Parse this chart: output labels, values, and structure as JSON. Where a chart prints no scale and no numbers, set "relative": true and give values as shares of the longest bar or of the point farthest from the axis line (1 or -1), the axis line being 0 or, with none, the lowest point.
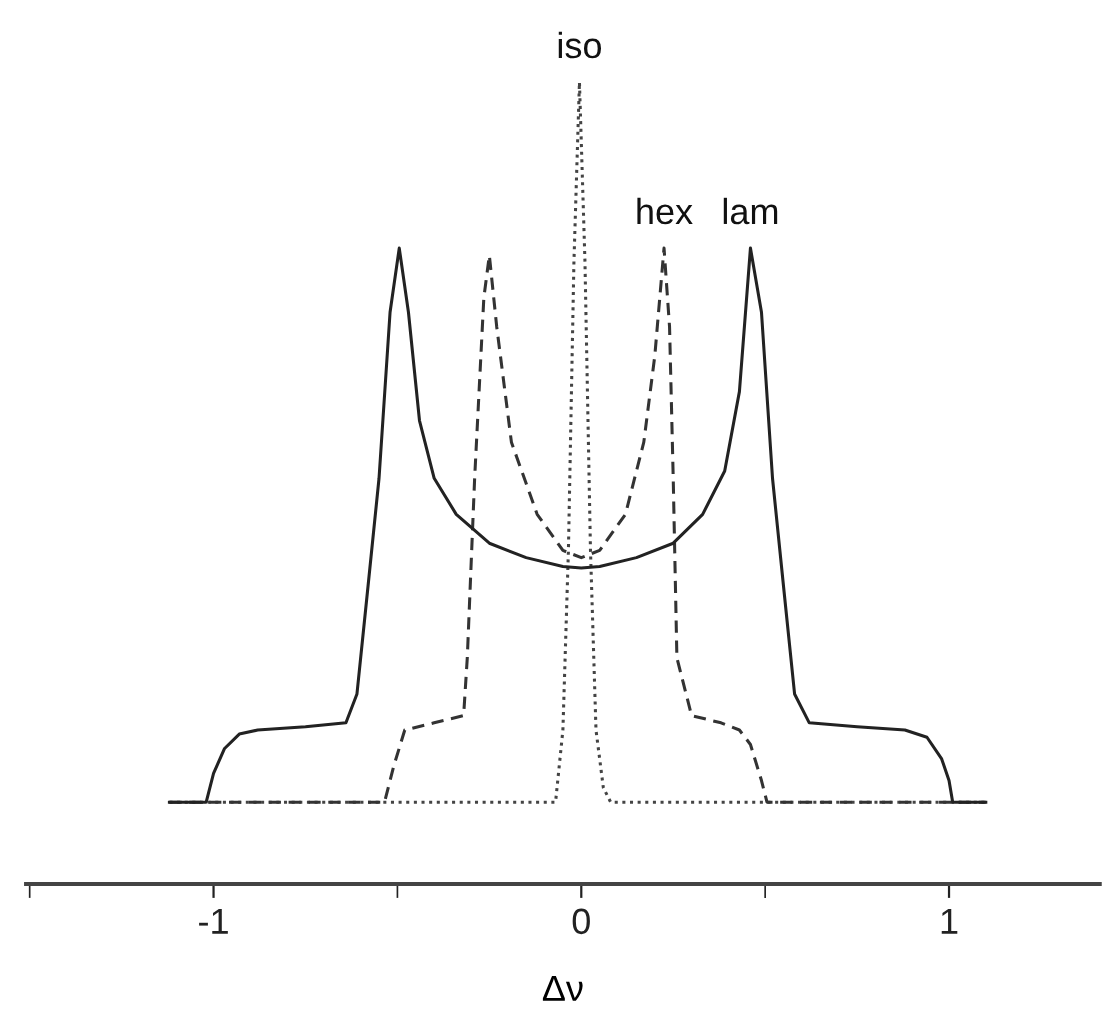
{
  "chart_data": {
    "type": "line",
    "relative": true,
    "xlabel": "Δν",
    "xlim": [
      -1.51,
      1.41
    ],
    "xticks": [
      {
        "value": -1.5,
        "label": null
      },
      -1,
      {
        "value": -0.5,
        "label": null
      },
      0,
      {
        "value": 0.5,
        "label": null
      },
      1
    ],
    "tick_labels": "x",
    "series": [
      {
        "name": "iso",
        "color": "#444444",
        "line_style": "dotted",
        "x": [
          -1.12,
          -0.07,
          -0.05,
          -0.035,
          -0.02,
          -0.005,
          0.01,
          0.025,
          0.04,
          0.06,
          0.08,
          1.1
        ],
        "values": [
          0.102,
          0.102,
          0.192,
          0.416,
          0.776,
          1.0,
          0.776,
          0.416,
          0.192,
          0.12,
          0.102,
          0.102
        ]
      },
      {
        "name": "hex",
        "color": "#333333",
        "line_style": "dashed",
        "x": [
          -1.12,
          -0.535,
          -0.51,
          -0.48,
          -0.4,
          -0.32,
          -0.31,
          -0.29,
          -0.265,
          -0.25,
          -0.23,
          -0.19,
          -0.12,
          -0.05,
          0,
          0.05,
          0.12,
          0.17,
          0.2,
          0.225,
          0.24,
          0.25,
          0.26,
          0.3,
          0.38,
          0.43,
          0.46,
          0.49,
          0.505,
          1.1
        ],
        "values": [
          0.102,
          0.102,
          0.147,
          0.192,
          0.201,
          0.21,
          0.282,
          0.506,
          0.731,
          0.784,
          0.695,
          0.551,
          0.461,
          0.416,
          0.407,
          0.416,
          0.461,
          0.551,
          0.659,
          0.793,
          0.695,
          0.506,
          0.282,
          0.21,
          0.201,
          0.192,
          0.174,
          0.129,
          0.102,
          0.102
        ]
      },
      {
        "name": "lam",
        "color": "#222222",
        "line_style": "solid",
        "x": [
          -1.12,
          -1.02,
          -1.0,
          -0.97,
          -0.93,
          -0.88,
          -0.75,
          -0.64,
          -0.61,
          -0.58,
          -0.55,
          -0.52,
          -0.495,
          -0.47,
          -0.44,
          -0.4,
          -0.34,
          -0.25,
          -0.15,
          -0.05,
          0,
          0.05,
          0.15,
          0.25,
          0.33,
          0.39,
          0.43,
          0.46,
          0.49,
          0.52,
          0.55,
          0.58,
          0.62,
          0.75,
          0.88,
          0.94,
          0.98,
          1.0,
          1.01,
          1.1
        ],
        "values": [
          0.102,
          0.102,
          0.138,
          0.169,
          0.187,
          0.192,
          0.196,
          0.201,
          0.237,
          0.371,
          0.506,
          0.713,
          0.793,
          0.713,
          0.578,
          0.506,
          0.461,
          0.425,
          0.407,
          0.396,
          0.394,
          0.396,
          0.407,
          0.425,
          0.461,
          0.515,
          0.614,
          0.793,
          0.713,
          0.506,
          0.371,
          0.237,
          0.201,
          0.196,
          0.192,
          0.183,
          0.156,
          0.129,
          0.102,
          0.102
        ]
      }
    ]
  }
}
